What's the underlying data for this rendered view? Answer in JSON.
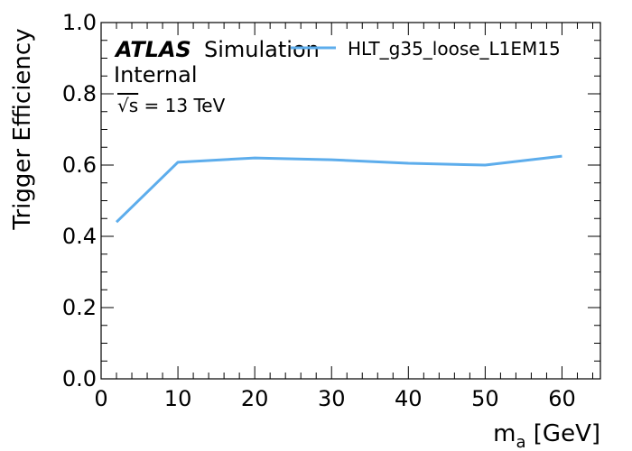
{
  "chart_data": {
    "type": "line",
    "x": [
      2,
      10,
      20,
      30,
      40,
      50,
      60
    ],
    "series": [
      {
        "name": "HLT_g35_loose_L1EM15",
        "values": [
          0.44,
          0.608,
          0.62,
          0.615,
          0.605,
          0.6,
          0.625
        ],
        "color": "#5dadec"
      }
    ],
    "xlim": [
      0,
      65
    ],
    "ylim": [
      0.0,
      1.0
    ],
    "xticks": [
      0,
      10,
      20,
      30,
      40,
      50,
      60
    ],
    "xtick_labels": [
      "0",
      "10",
      "20",
      "30",
      "40",
      "50",
      "60"
    ],
    "yticks": [
      0.0,
      0.2,
      0.4,
      0.6,
      0.8,
      1.0
    ],
    "ytick_labels": [
      "0.0",
      "0.2",
      "0.4",
      "0.6",
      "0.8",
      "1.0"
    ],
    "xlabel_main": "m",
    "xlabel_sub": "a",
    "xlabel_unit": " [GeV]",
    "ylabel": "Trigger Efficiency",
    "legend_placement": "top-right",
    "grid": false,
    "annotations": {
      "atlas": "ATLAS",
      "simulation": "Simulation",
      "internal": "Internal",
      "sqrt_symbol": "√s",
      "energy": " = 13 TeV"
    }
  }
}
